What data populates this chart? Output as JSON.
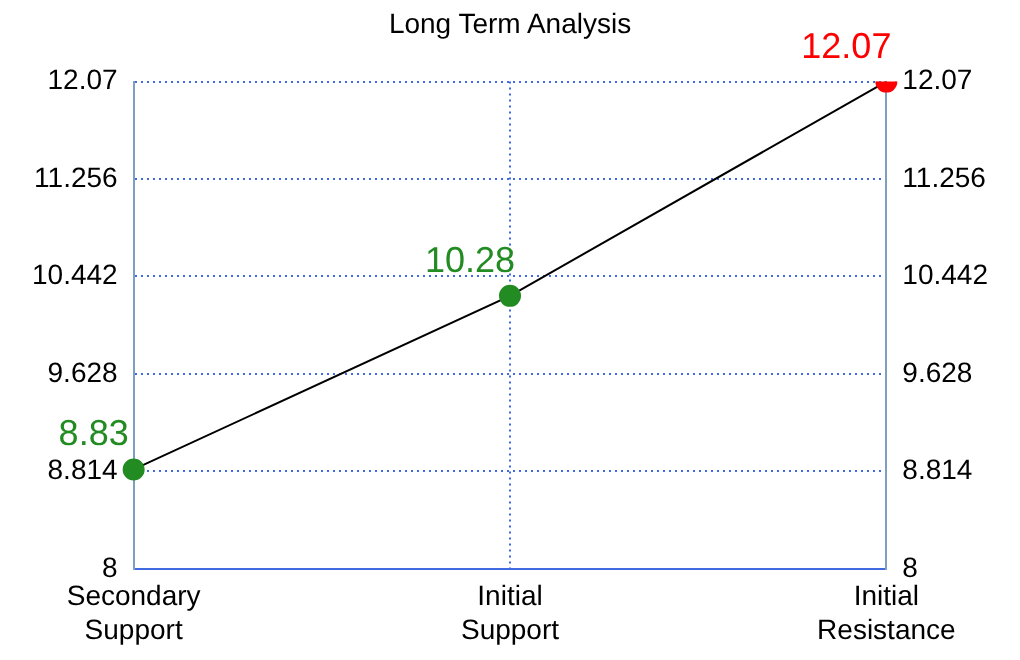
{
  "chart_data": {
    "type": "line",
    "title": "Long Term Analysis",
    "categories": [
      "Secondary Support",
      "Initial Support",
      "Initial Resistance"
    ],
    "series": [
      {
        "color": "#000000",
        "colors": [
          "#228b22",
          "#228b22",
          "#ff0000"
        ],
        "values": [
          8.83,
          10.28,
          12.07
        ]
      }
    ],
    "ylim": [
      8,
      12.07
    ],
    "yticks": [
      8,
      8.814,
      9.628,
      10.442,
      11.256,
      12.07
    ],
    "y2lim": [
      8,
      12.07
    ],
    "y2ticks": [
      8,
      8.814,
      9.628,
      10.442,
      11.256,
      12.07
    ],
    "grid": true,
    "legend": false,
    "marker": "circle",
    "line_style": "solid",
    "data_labels": true
  }
}
